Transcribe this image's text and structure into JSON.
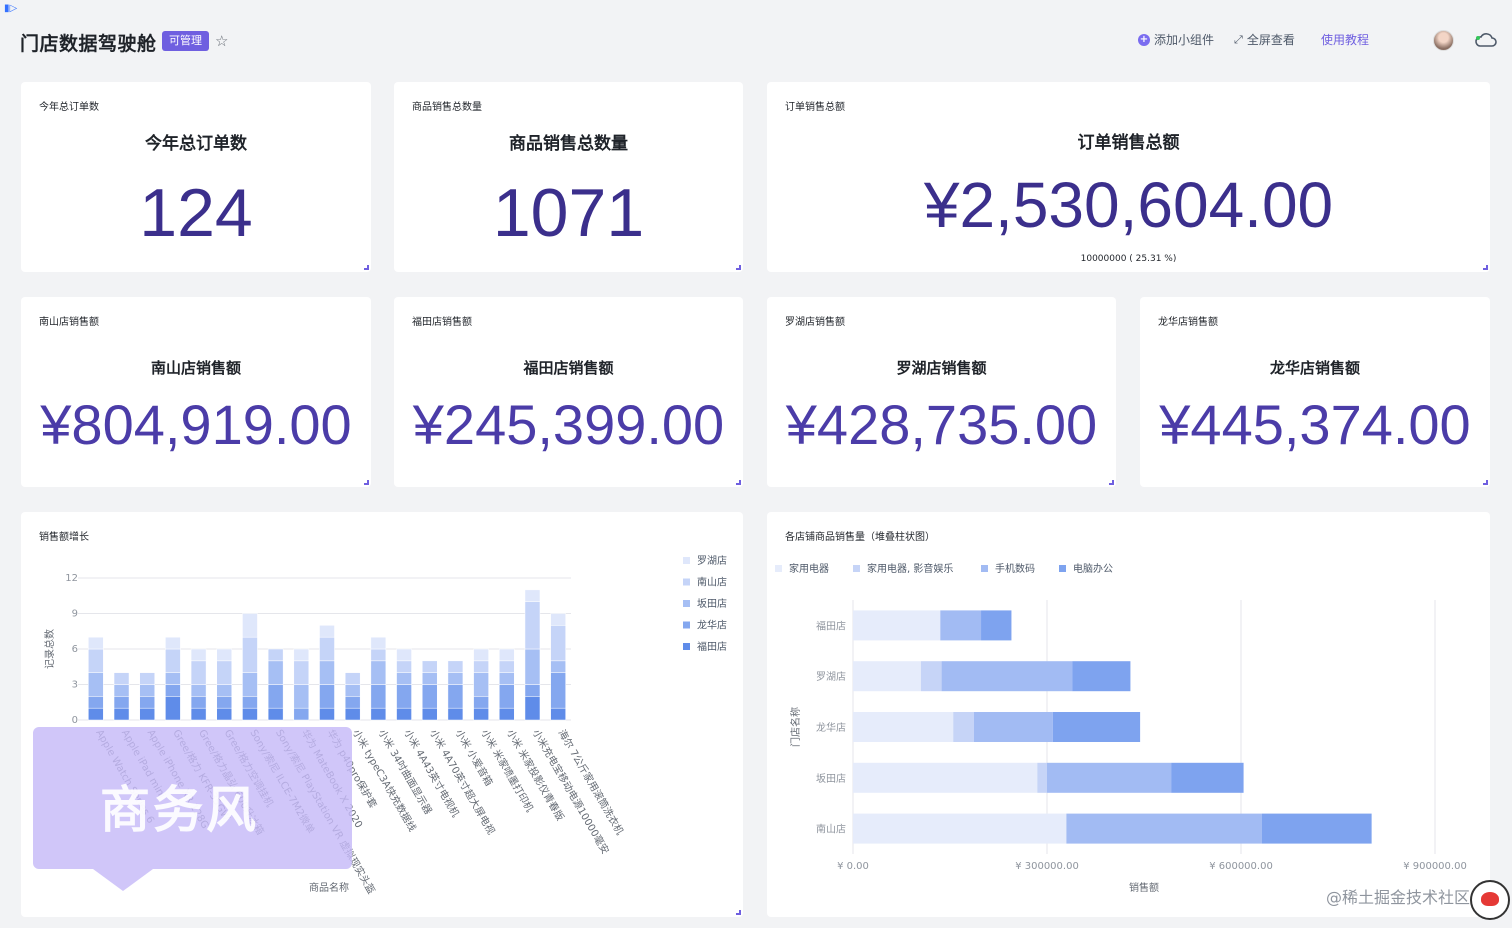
{
  "header": {
    "title": "门店数据驾驶舱",
    "badge": "可管理",
    "add_widget": "添加小组件",
    "fullscreen": "全屏查看",
    "tutorial": "使用教程"
  },
  "metrics": {
    "orders": {
      "label": "今年总订单数",
      "title": "今年总订单数",
      "value": "124"
    },
    "quantity": {
      "label": "商品销售总数量",
      "title": "商品销售总数量",
      "value": "1071"
    },
    "sales": {
      "label": "订单销售总额",
      "title": "订单销售总额",
      "value": "¥2,530,604.00",
      "target": "10000000 ( 25.31 %)"
    },
    "nanshan": {
      "label": "南山店销售额",
      "title": "南山店销售额",
      "value": "¥804,919.00"
    },
    "futian": {
      "label": "福田店销售额",
      "title": "福田店销售额",
      "value": "¥245,399.00"
    },
    "luohu": {
      "label": "罗湖店销售额",
      "title": "罗湖店销售额",
      "value": "¥428,735.00"
    },
    "longhua": {
      "label": "龙华店销售额",
      "title": "龙华店销售额",
      "value": "¥445,374.00"
    }
  },
  "growth_card": {
    "label": "销售额增长"
  },
  "stack_card": {
    "label": "各店铺商品销售量（堆叠柱状图）"
  },
  "tooltip": {
    "watermark": "商务风"
  },
  "footer": {
    "watermark": "@稀土掘金技术社区"
  },
  "chart_data": [
    {
      "type": "bar",
      "stacked": true,
      "xlabel": "商品名称",
      "ylabel": "记录总数",
      "ylim": [
        0,
        12
      ],
      "yticks": [
        0,
        3,
        6,
        9,
        12
      ],
      "legend_position": "right",
      "colors": [
        "#dfe7fb",
        "#c5d4f8",
        "#a6bff4",
        "#84a7ef",
        "#5f8ce9"
      ],
      "categories": [
        "Apple Watch Series 6",
        "Apple iPad mini",
        "Apple iPhone XR 128G",
        "Gree/格力 KFR-35GW",
        "Gree/格力晶弘 600升冰箱",
        "Gree/格力空调挂机",
        "Sony/索尼 ILCE-7M2微单",
        "Sony/索尼 PlayStation VR 虚拟现实头盔",
        "华为 MateBook X 2020",
        "华为 p40pro保护套",
        "小米 typeC3A快充数据线",
        "小米 34吋曲面显示器",
        "小米 4A43英寸电视机",
        "小米 4A70英寸超大屏电视",
        "小米 小爱音箱",
        "小米 米家喷墨打印机",
        "小米 米家投影仪青春版",
        "小米充电宝移动电源10000毫安",
        "海尔 7公斤家用滚筒洗衣机"
      ],
      "series": [
        {
          "name": "罗湖店",
          "values": [
            1,
            0,
            0,
            1,
            1,
            1,
            2,
            0,
            1,
            1,
            0,
            1,
            1,
            0,
            0,
            1,
            1,
            1,
            1
          ]
        },
        {
          "name": "南山店",
          "values": [
            2,
            1,
            1,
            2,
            2,
            2,
            3,
            1,
            2,
            2,
            1,
            1,
            1,
            1,
            1,
            1,
            1,
            4,
            3
          ]
        },
        {
          "name": "坂田店",
          "values": [
            2,
            1,
            1,
            1,
            1,
            1,
            2,
            2,
            2,
            2,
            1,
            2,
            1,
            1,
            1,
            2,
            1,
            3,
            1
          ]
        },
        {
          "name": "龙华店",
          "values": [
            1,
            1,
            1,
            1,
            1,
            1,
            1,
            2,
            1,
            2,
            1,
            2,
            2,
            2,
            2,
            1,
            2,
            1,
            3
          ]
        },
        {
          "name": "福田店",
          "values": [
            1,
            1,
            1,
            2,
            1,
            1,
            1,
            1,
            0,
            1,
            1,
            1,
            1,
            1,
            1,
            1,
            1,
            2,
            1
          ]
        }
      ]
    },
    {
      "type": "bar",
      "orientation": "horizontal",
      "stacked": true,
      "xlabel": "销售额",
      "ylabel": "门店名称",
      "xlim": [
        0,
        900000
      ],
      "xticks": [
        0,
        300000,
        600000,
        900000
      ],
      "xtick_labels": [
        "¥ 0.00",
        "¥ 300000.00",
        "¥ 600000.00",
        "¥ 900000.00"
      ],
      "legend_position": "top-left",
      "colors": [
        "#e6ecfb",
        "#c6d4f7",
        "#a2bbf3",
        "#7ea3ef"
      ],
      "categories": [
        "福田店",
        "罗湖店",
        "龙华店",
        "坂田店",
        "南山店"
      ],
      "series": [
        {
          "name": "家用电器",
          "values": [
            135000,
            105000,
            155000,
            285000,
            330000
          ]
        },
        {
          "name": "家用电器, 影音娱乐",
          "values": [
            0,
            32000,
            32000,
            15000,
            0
          ]
        },
        {
          "name": "手机数码",
          "values": [
            63000,
            202000,
            122000,
            192000,
            302000
          ]
        },
        {
          "name": "电脑办公",
          "values": [
            47000,
            90000,
            135000,
            112000,
            170000
          ]
        }
      ]
    }
  ]
}
